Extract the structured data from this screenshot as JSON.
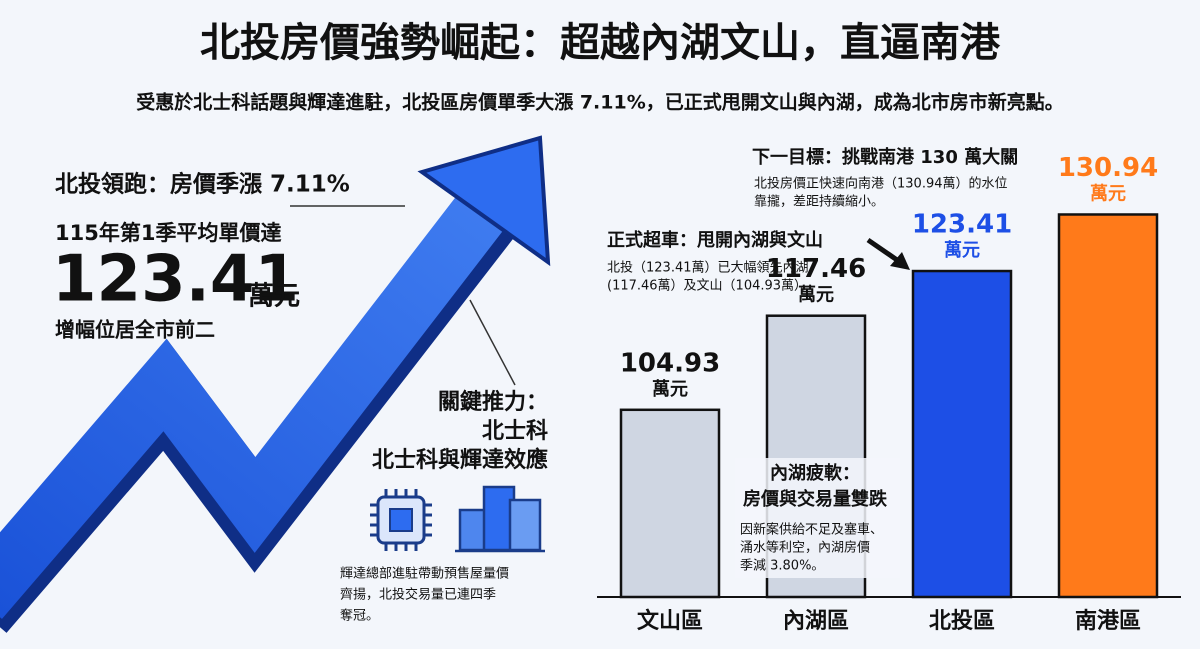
{
  "header": {
    "title": "北投房價強勢崛起：超越內湖文山，直逼南港",
    "subtitle": "受惠於北士科話題與輝達進駐，北投區房價單季大漲 7.11%，已正式甩開文山與內湖，成為北市房市新亮點。"
  },
  "lead": {
    "heading": "北投領跑：房價季漲 7.11%",
    "line": "115年第1季平均單價達",
    "price": "123.41",
    "unit": "萬元",
    "note": "增幅位居全市前二"
  },
  "driver": {
    "heading": [
      "關鍵推力：",
      "北士科",
      "北士科與輝達效應"
    ],
    "body": [
      "輝達總部進駐帶動預售屋量價",
      "齊揚，北投交易量已連四季",
      "奪冠。"
    ]
  },
  "callouts": [
    {
      "heading": [
        "下一目標：挑戰南港 130 萬大關"
      ],
      "body": [
        "北投房價正快速向南港（130.94萬）的水位",
        "靠攏，差距持續縮小。"
      ]
    },
    {
      "heading": [
        "正式超車：甩開內湖與文山"
      ],
      "body": [
        "北投（123.41萬）已大幅領先內湖",
        "(117.46萬）及文山（104.93萬）。"
      ]
    },
    {
      "heading": [
        "內湖疲軟：",
        "房價與交易量雙跌"
      ],
      "body": [
        "因新案供給不足及塞車、",
        "涌水等利空，內湖房價",
        "季減 3.80%。"
      ]
    }
  ],
  "chart_data": {
    "type": "bar",
    "categories": [
      "文山區",
      "內湖區",
      "北投區",
      "南港區"
    ],
    "values": [
      104.93,
      117.46,
      123.41,
      130.94
    ],
    "unit": "萬元",
    "colors": [
      "#cfd6e2",
      "#cfd6e2",
      "#1d4fe6",
      "#ff7a1a"
    ],
    "label_colors": [
      "#111111",
      "#111111",
      "#1d4fe6",
      "#ff7a1a"
    ],
    "ylim": [
      80,
      135
    ]
  }
}
